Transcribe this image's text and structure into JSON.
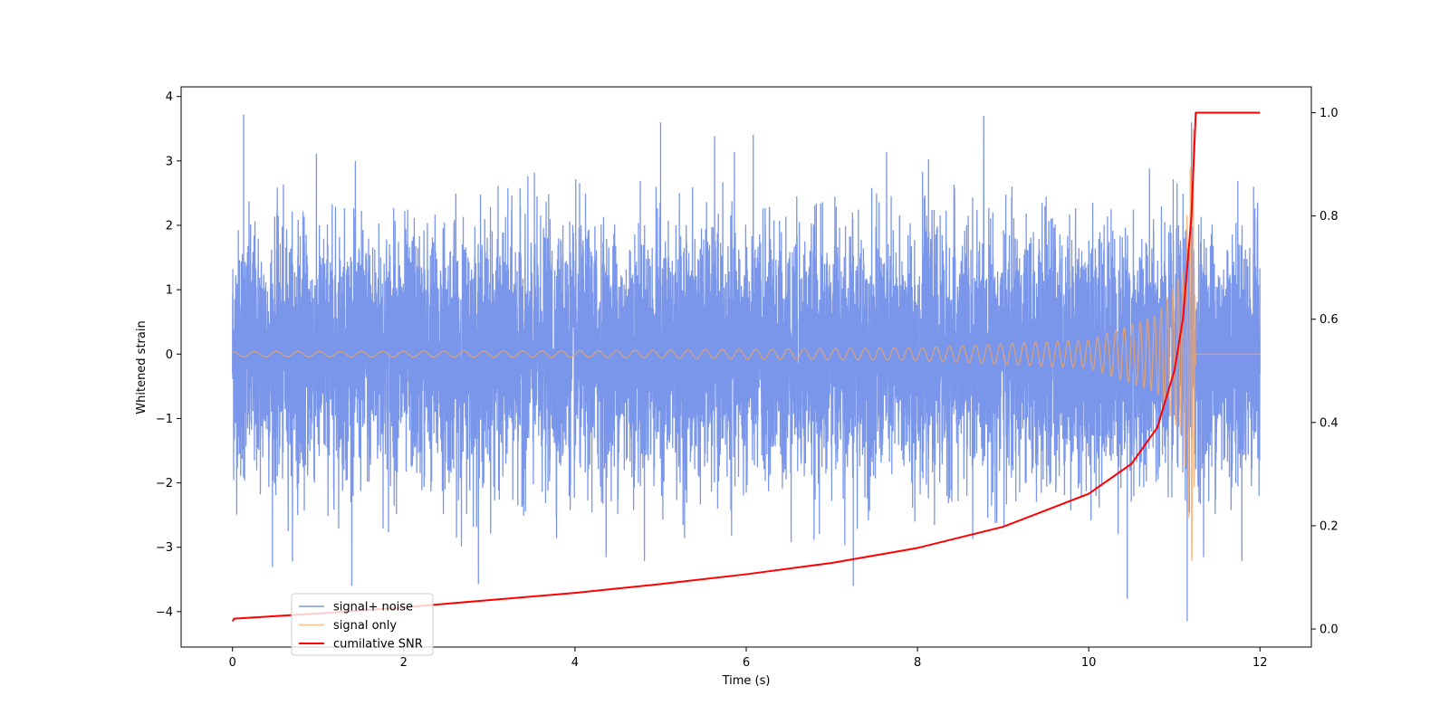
{
  "chart_data": {
    "type": "line",
    "xlabel": "Time (s)",
    "ylabel": "Whitened strain",
    "xlim": [
      -0.6,
      12.6
    ],
    "ylim": [
      -4.55,
      4.15
    ],
    "y2lim": [
      -0.035,
      1.05
    ],
    "xticks": [
      0,
      2,
      4,
      6,
      8,
      10,
      12
    ],
    "xtick_labels": [
      "0",
      "2",
      "4",
      "6",
      "8",
      "10",
      "12"
    ],
    "yticks": [
      -4,
      -3,
      -2,
      -1,
      0,
      1,
      2,
      3,
      4
    ],
    "ytick_labels": [
      "−4",
      "−3",
      "−2",
      "−1",
      "0",
      "1",
      "2",
      "3",
      "4"
    ],
    "y2ticks": [
      0.0,
      0.2,
      0.4,
      0.6,
      0.8,
      1.0
    ],
    "y2tick_labels": [
      "0.0",
      "0.2",
      "0.4",
      "0.6",
      "0.8",
      "1.0"
    ],
    "legend_position": "lower-left",
    "grid": false,
    "series": [
      {
        "name": "signal+ noise",
        "color": "#4169e1",
        "axis": "left",
        "x_range": [
          0,
          12
        ],
        "envelope_y": [
          -3.6,
          3.7
        ],
        "peaks": [
          [
            0.13,
            3.72
          ],
          [
            5.0,
            3.6
          ],
          [
            11.2,
            3.6
          ],
          [
            11.15,
            -4.15
          ],
          [
            7.25,
            -3.6
          ],
          [
            10.45,
            -3.8
          ]
        ]
      },
      {
        "name": "signal only",
        "color": "#f4a460",
        "axis": "left",
        "x_range": [
          0,
          12
        ],
        "merger_time": 11.25,
        "amplitude_points": [
          [
            0,
            0.04
          ],
          [
            4,
            0.05
          ],
          [
            8,
            0.1
          ],
          [
            10,
            0.22
          ],
          [
            10.8,
            0.6
          ],
          [
            11.1,
            1.3
          ],
          [
            11.22,
            3.5
          ],
          [
            11.25,
            0
          ]
        ]
      },
      {
        "name": "cumilative SNR",
        "color": "#ff0000",
        "axis": "right",
        "points": [
          [
            0.0,
            0.015
          ],
          [
            0.02,
            0.02
          ],
          [
            1,
            0.03
          ],
          [
            2,
            0.042
          ],
          [
            3,
            0.056
          ],
          [
            4,
            0.07
          ],
          [
            5,
            0.087
          ],
          [
            6,
            0.106
          ],
          [
            7,
            0.128
          ],
          [
            8,
            0.157
          ],
          [
            9,
            0.198
          ],
          [
            10,
            0.262
          ],
          [
            10.5,
            0.32
          ],
          [
            10.8,
            0.39
          ],
          [
            11.0,
            0.5
          ],
          [
            11.1,
            0.6
          ],
          [
            11.2,
            0.8
          ],
          [
            11.25,
            1.0
          ],
          [
            12.0,
            1.0
          ]
        ]
      }
    ]
  }
}
